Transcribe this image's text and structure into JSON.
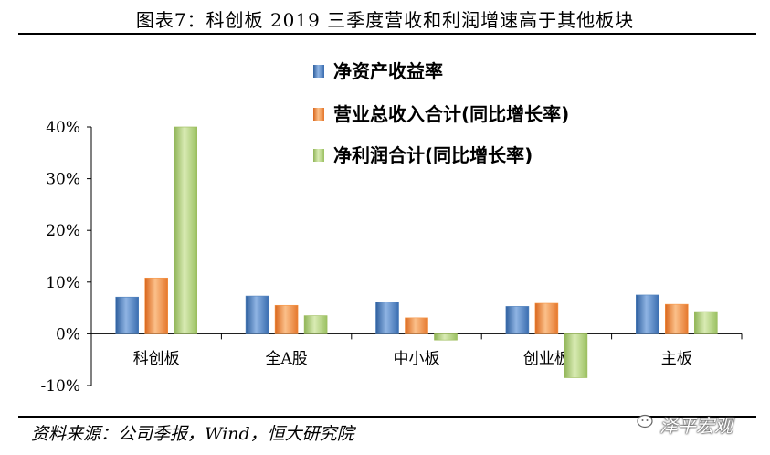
{
  "title": "图表7：科创板 2019 三季度营收和利润增速高于其他板块",
  "source": "资料来源：公司季报，Wind，恒大研究院",
  "watermark": "泽平宏观",
  "chart_data": {
    "type": "bar",
    "categories": [
      "科创板",
      "全A股",
      "中小板",
      "创业板",
      "主板"
    ],
    "series": [
      {
        "name": "净资产收益率",
        "values": [
          7.1,
          7.3,
          6.2,
          5.3,
          7.5
        ],
        "color": "#4f81bd"
      },
      {
        "name": "营业总收入合计(同比增长率)",
        "values": [
          10.8,
          5.5,
          3.1,
          5.9,
          5.7
        ],
        "color": "#f79646"
      },
      {
        "name": "净利润合计(同比增长率)",
        "values": [
          40.0,
          3.5,
          -1.2,
          -8.5,
          4.3
        ],
        "color": "#9bbb59"
      }
    ],
    "yticks": [
      "40%",
      "30%",
      "20%",
      "10%",
      "0%",
      "-10%"
    ],
    "ylim": [
      -10,
      40
    ],
    "legend_position": "top-center",
    "grid": false
  }
}
